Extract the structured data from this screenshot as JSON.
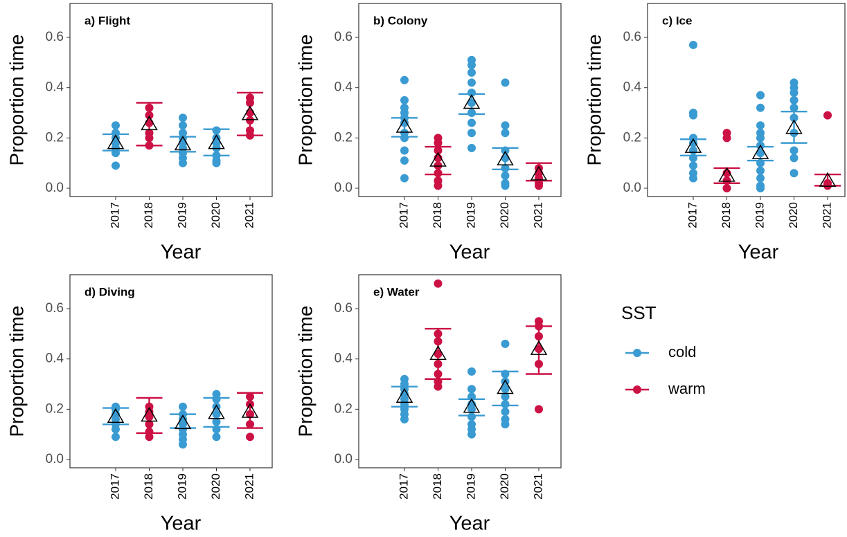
{
  "chart_data": [
    {
      "type": "strip",
      "title": "a) Flight",
      "xlabel": "Year",
      "ylabel": "Proportion time",
      "categories": [
        "2017",
        "2018",
        "2019",
        "2020",
        "2021"
      ],
      "sst": [
        0,
        1,
        0,
        0,
        1
      ],
      "points": [
        [
          0.25,
          0.22,
          0.2,
          0.18,
          0.16,
          0.14,
          0.09
        ],
        [
          0.32,
          0.29,
          0.26,
          0.22,
          0.2,
          0.17
        ],
        [
          0.28,
          0.25,
          0.22,
          0.2,
          0.18,
          0.16,
          0.14,
          0.12,
          0.1
        ],
        [
          0.23,
          0.2,
          0.18,
          0.16,
          0.13,
          0.11,
          0.1
        ],
        [
          0.36,
          0.34,
          0.3,
          0.27,
          0.23,
          0.21
        ]
      ],
      "means": [
        0.18,
        0.255,
        0.175,
        0.18,
        0.295
      ],
      "lower": [
        0.15,
        0.17,
        0.145,
        0.13,
        0.21
      ],
      "upper": [
        0.215,
        0.34,
        0.205,
        0.235,
        0.38
      ],
      "ylim": [
        -0.033,
        0.735
      ],
      "yticks": [
        {
          "value": 0,
          "label": "0.0"
        },
        {
          "value": 0.2,
          "label": "0.2"
        },
        {
          "value": 0.4,
          "label": "0.4"
        },
        {
          "value": 0.6,
          "label": "0.6"
        }
      ]
    },
    {
      "type": "strip",
      "title": "b) Colony",
      "xlabel": "Year",
      "ylabel": "Proportion time",
      "categories": [
        "2017",
        "2018",
        "2019",
        "2020",
        "2021"
      ],
      "sst": [
        0,
        1,
        0,
        0,
        1
      ],
      "points": [
        [
          0.43,
          0.35,
          0.32,
          0.3,
          0.28,
          0.26,
          0.22,
          0.2,
          0.15,
          0.11,
          0.04
        ],
        [
          0.2,
          0.18,
          0.15,
          0.12,
          0.09,
          0.06,
          0.03,
          0.01
        ],
        [
          0.51,
          0.49,
          0.46,
          0.42,
          0.38,
          0.34,
          0.3,
          0.26,
          0.22,
          0.16
        ],
        [
          0.42,
          0.25,
          0.22,
          0.15,
          0.12,
          0.08,
          0.05,
          0.02,
          0.01
        ],
        [
          0.08,
          0.06,
          0.04,
          0.02,
          0.01
        ]
      ],
      "means": [
        0.245,
        0.11,
        0.34,
        0.115,
        0.055
      ],
      "lower": [
        0.205,
        0.055,
        0.295,
        0.075,
        0.03
      ],
      "upper": [
        0.28,
        0.165,
        0.375,
        0.16,
        0.1
      ],
      "ylim": [
        -0.033,
        0.735
      ],
      "yticks": [
        {
          "value": 0,
          "label": "0.0"
        },
        {
          "value": 0.2,
          "label": "0.2"
        },
        {
          "value": 0.4,
          "label": "0.4"
        },
        {
          "value": 0.6,
          "label": "0.6"
        }
      ]
    },
    {
      "type": "strip",
      "title": "c) Ice",
      "xlabel": "Year",
      "ylabel": "Proportion time",
      "categories": [
        "2017",
        "2018",
        "2019",
        "2020",
        "2021"
      ],
      "sst": [
        0,
        1,
        0,
        0,
        1
      ],
      "points": [
        [
          0.57,
          0.3,
          0.29,
          0.2,
          0.18,
          0.15,
          0.12,
          0.09,
          0.06,
          0.04
        ],
        [
          0.22,
          0.2,
          0.06,
          0.03,
          0.0
        ],
        [
          0.37,
          0.32,
          0.25,
          0.22,
          0.2,
          0.17,
          0.14,
          0.1,
          0.07,
          0.04,
          0.01,
          0.0
        ],
        [
          0.42,
          0.4,
          0.38,
          0.35,
          0.32,
          0.28,
          0.22,
          0.15,
          0.12,
          0.06
        ],
        [
          0.29,
          0.02,
          0.01
        ]
      ],
      "means": [
        0.165,
        0.05,
        0.14,
        0.24,
        0.03
      ],
      "lower": [
        0.13,
        0.02,
        0.11,
        0.18,
        0.01
      ],
      "upper": [
        0.195,
        0.08,
        0.165,
        0.305,
        0.055
      ],
      "ylim": [
        -0.033,
        0.735
      ],
      "yticks": [
        {
          "value": 0,
          "label": "0.0"
        },
        {
          "value": 0.2,
          "label": "0.2"
        },
        {
          "value": 0.4,
          "label": "0.4"
        },
        {
          "value": 0.6,
          "label": "0.6"
        }
      ]
    },
    {
      "type": "strip",
      "title": "d) Diving",
      "xlabel": "Year",
      "ylabel": "Proportion time",
      "categories": [
        "2017",
        "2018",
        "2019",
        "2020",
        "2021"
      ],
      "sst": [
        0,
        1,
        0,
        0,
        1
      ],
      "points": [
        [
          0.21,
          0.2,
          0.18,
          0.16,
          0.14,
          0.12,
          0.09
        ],
        [
          0.21,
          0.19,
          0.17,
          0.14,
          0.11,
          0.09
        ],
        [
          0.21,
          0.18,
          0.16,
          0.14,
          0.12,
          0.1,
          0.08,
          0.06
        ],
        [
          0.26,
          0.24,
          0.21,
          0.18,
          0.15,
          0.12,
          0.09
        ],
        [
          0.25,
          0.22,
          0.18,
          0.14,
          0.09
        ]
      ],
      "means": [
        0.17,
        0.175,
        0.145,
        0.185,
        0.19
      ],
      "lower": [
        0.14,
        0.105,
        0.125,
        0.13,
        0.125
      ],
      "upper": [
        0.205,
        0.245,
        0.18,
        0.245,
        0.265
      ],
      "ylim": [
        -0.033,
        0.735
      ],
      "yticks": [
        {
          "value": 0,
          "label": "0.0"
        },
        {
          "value": 0.2,
          "label": "0.2"
        },
        {
          "value": 0.4,
          "label": "0.4"
        },
        {
          "value": 0.6,
          "label": "0.6"
        }
      ]
    },
    {
      "type": "strip",
      "title": "e) Water",
      "xlabel": "Year",
      "ylabel": "Proportion time",
      "categories": [
        "2017",
        "2018",
        "2019",
        "2020",
        "2021"
      ],
      "sst": [
        0,
        1,
        0,
        0,
        1
      ],
      "points": [
        [
          0.32,
          0.3,
          0.28,
          0.26,
          0.24,
          0.22,
          0.2,
          0.18,
          0.16
        ],
        [
          0.7,
          0.5,
          0.47,
          0.42,
          0.38,
          0.34,
          0.31,
          0.29
        ],
        [
          0.35,
          0.28,
          0.25,
          0.22,
          0.2,
          0.17,
          0.14,
          0.12,
          0.1
        ],
        [
          0.46,
          0.34,
          0.31,
          0.28,
          0.25,
          0.22,
          0.19,
          0.16,
          0.14
        ],
        [
          0.55,
          0.53,
          0.49,
          0.44,
          0.38,
          0.2
        ]
      ],
      "means": [
        0.25,
        0.42,
        0.21,
        0.285,
        0.44
      ],
      "lower": [
        0.21,
        0.32,
        0.175,
        0.215,
        0.34
      ],
      "upper": [
        0.29,
        0.52,
        0.24,
        0.35,
        0.53
      ],
      "ylim": [
        -0.033,
        0.735
      ],
      "yticks": [
        {
          "value": 0,
          "label": "0.0"
        },
        {
          "value": 0.2,
          "label": "0.2"
        },
        {
          "value": 0.4,
          "label": "0.4"
        },
        {
          "value": 0.6,
          "label": "0.6"
        }
      ]
    }
  ],
  "legend": {
    "title": "SST",
    "entries": [
      {
        "name": "cold",
        "color": "#3a9bd2"
      },
      {
        "name": "warm",
        "color": "#cc1144"
      }
    ]
  }
}
